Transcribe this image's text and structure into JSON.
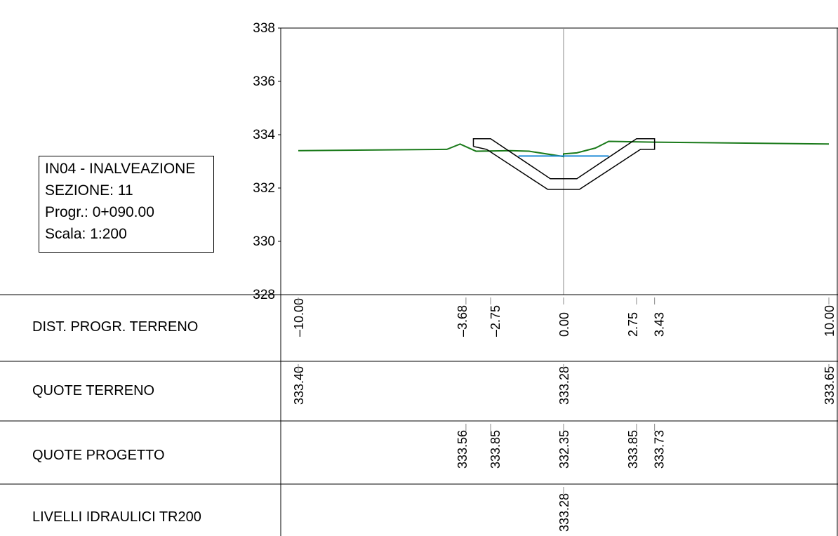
{
  "info": {
    "title": "IN04 - INALVEAZIONE",
    "section": "SEZIONE: 11",
    "progressive": "Progr.: 0+090.00",
    "scale": "Scala: 1:200"
  },
  "y_axis": {
    "ticks": [
      "338",
      "336",
      "334",
      "332",
      "330",
      "328"
    ],
    "range": [
      328,
      338
    ]
  },
  "x_axis": {
    "range": [
      -10,
      10
    ]
  },
  "table": {
    "rows": [
      {
        "label": "DIST. PROGR. TERRENO",
        "values": [
          {
            "x": -10.0,
            "text": "–10.00"
          },
          {
            "x": -3.68,
            "text": "–3.68"
          },
          {
            "x": -2.75,
            "text": "–2.75"
          },
          {
            "x": 0.0,
            "text": "0.00"
          },
          {
            "x": 2.75,
            "text": "2.75"
          },
          {
            "x": 3.43,
            "text": "3.43"
          },
          {
            "x": 10.0,
            "text": "10.00"
          }
        ]
      },
      {
        "label": "QUOTE TERRENO",
        "values": [
          {
            "x": -10.0,
            "text": "333.40"
          },
          {
            "x": 0.0,
            "text": "333.28"
          },
          {
            "x": 10.0,
            "text": "333.65"
          }
        ]
      },
      {
        "label": "QUOTE PROGETTO",
        "values": [
          {
            "x": -3.68,
            "text": "333.56"
          },
          {
            "x": -2.75,
            "text": "333.85"
          },
          {
            "x": 0.0,
            "text": "332.35"
          },
          {
            "x": 2.75,
            "text": "333.85"
          },
          {
            "x": 3.43,
            "text": "333.73"
          }
        ]
      },
      {
        "label": "LIVELLI IDRAULICI TR200",
        "values": [
          {
            "x": 0.0,
            "text": "333.28"
          }
        ]
      }
    ]
  },
  "chart_data": {
    "type": "line",
    "xlim": [
      -10,
      10
    ],
    "ylim": [
      328,
      338
    ],
    "series": [
      {
        "color": "#1a7a1a",
        "points": [
          [
            -10.0,
            333.4
          ],
          [
            -4.4,
            333.45
          ],
          [
            -3.9,
            333.65
          ],
          [
            -3.3,
            333.38
          ],
          [
            -2.0,
            333.4
          ],
          [
            -1.3,
            333.38
          ],
          [
            0.0,
            333.18
          ],
          [
            0.0,
            333.28
          ],
          [
            0.5,
            333.32
          ],
          [
            1.2,
            333.5
          ],
          [
            1.7,
            333.75
          ],
          [
            3.4,
            333.72
          ],
          [
            10.0,
            333.65
          ]
        ]
      },
      {
        "color": "#000000",
        "points": [
          [
            -3.4,
            333.56
          ],
          [
            -3.4,
            333.85
          ],
          [
            -2.75,
            333.85
          ],
          [
            -0.5,
            332.35
          ],
          [
            0.5,
            332.35
          ],
          [
            2.75,
            333.85
          ],
          [
            3.43,
            333.85
          ],
          [
            3.43,
            333.73
          ]
        ]
      },
      {
        "color": "#000000",
        "points": [
          [
            -3.4,
            333.56
          ],
          [
            -2.9,
            333.45
          ],
          [
            -0.6,
            331.95
          ],
          [
            0.6,
            331.95
          ],
          [
            2.9,
            333.45
          ],
          [
            3.43,
            333.45
          ],
          [
            3.43,
            333.73
          ]
        ]
      },
      {
        "color": "#1e8ad6",
        "points": [
          [
            -1.7,
            333.2
          ],
          [
            1.7,
            333.2
          ]
        ]
      }
    ],
    "centerline_x": 0.0
  }
}
